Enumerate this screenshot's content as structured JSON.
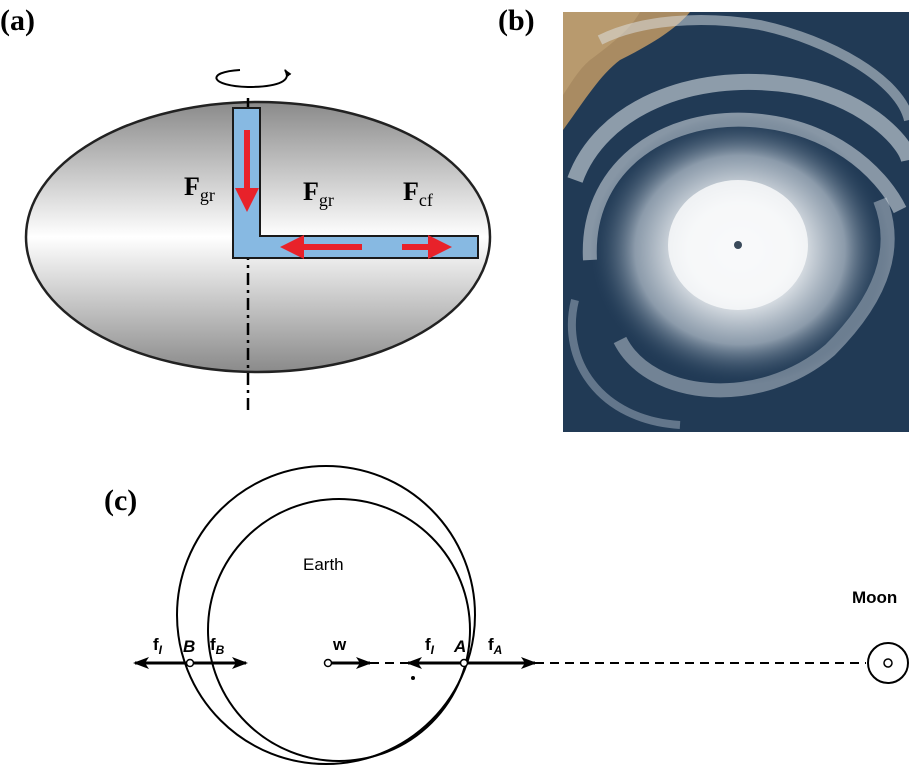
{
  "panel_a": {
    "label": "(a)",
    "forces": [
      {
        "symbol": "F",
        "subscript": "gr"
      },
      {
        "symbol": "F",
        "subscript": "gr"
      },
      {
        "symbol": "F",
        "subscript": "cf"
      }
    ]
  },
  "panel_b": {
    "label": "(b)"
  },
  "panel_c": {
    "label": "(c)",
    "earth": "Earth",
    "moon": "Moon",
    "point_b": "B",
    "point_a": "A",
    "center_force": "w",
    "forces": [
      {
        "symbol": "f",
        "subscript": "I"
      },
      {
        "symbol": "f",
        "subscript": "B"
      },
      {
        "symbol": "f",
        "subscript": "I"
      },
      {
        "symbol": "f",
        "subscript": "A"
      }
    ]
  }
}
